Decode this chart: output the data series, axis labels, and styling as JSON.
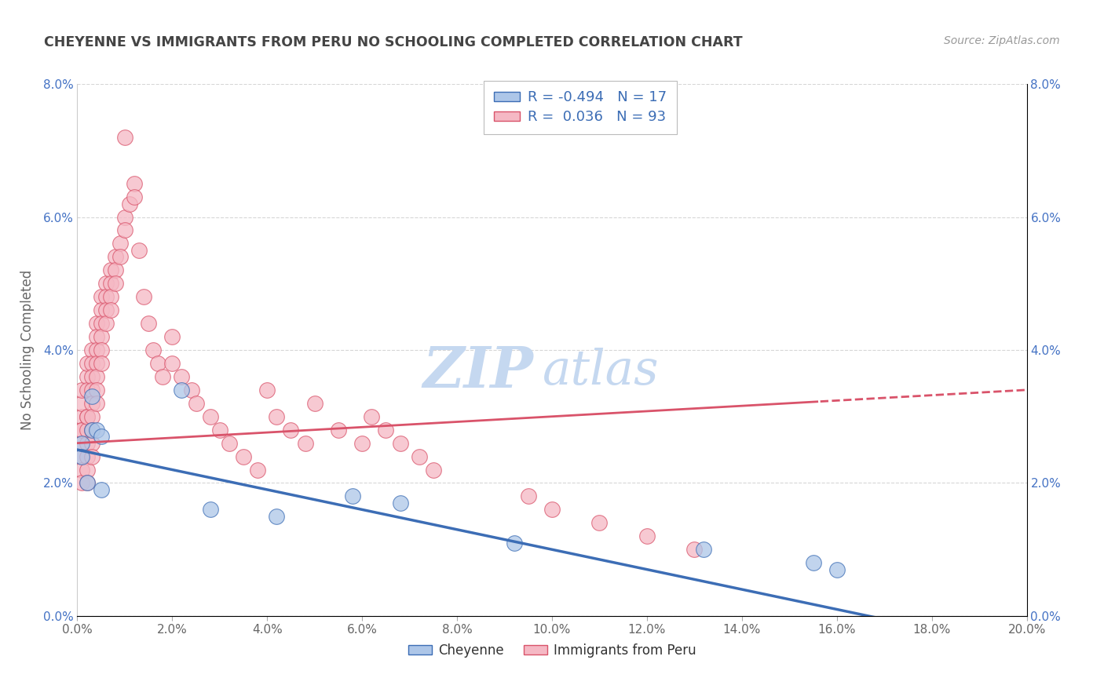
{
  "title": "CHEYENNE VS IMMIGRANTS FROM PERU NO SCHOOLING COMPLETED CORRELATION CHART",
  "source": "Source: ZipAtlas.com",
  "ylabel": "No Schooling Completed",
  "xlim": [
    0.0,
    0.2
  ],
  "ylim": [
    0.0,
    0.08
  ],
  "xlabel_ticks": [
    0.0,
    0.02,
    0.04,
    0.06,
    0.08,
    0.1,
    0.12,
    0.14,
    0.16,
    0.18,
    0.2
  ],
  "ylabel_ticks": [
    0.0,
    0.02,
    0.04,
    0.06,
    0.08
  ],
  "cheyenne_color": "#adc6e8",
  "peru_color": "#f5b8c4",
  "cheyenne_line_color": "#3c6db5",
  "peru_line_color": "#d9536a",
  "R_cheyenne": -0.494,
  "N_cheyenne": 17,
  "R_peru": 0.036,
  "N_peru": 93,
  "cheyenne_scatter_x": [
    0.001,
    0.001,
    0.002,
    0.003,
    0.003,
    0.004,
    0.005,
    0.005,
    0.022,
    0.028,
    0.042,
    0.058,
    0.068,
    0.092,
    0.132,
    0.155,
    0.16
  ],
  "cheyenne_scatter_y": [
    0.026,
    0.024,
    0.02,
    0.028,
    0.033,
    0.028,
    0.019,
    0.027,
    0.034,
    0.016,
    0.015,
    0.018,
    0.017,
    0.011,
    0.01,
    0.008,
    0.007
  ],
  "peru_scatter_x": [
    0.001,
    0.001,
    0.001,
    0.001,
    0.001,
    0.001,
    0.001,
    0.001,
    0.001,
    0.002,
    0.002,
    0.002,
    0.002,
    0.002,
    0.002,
    0.002,
    0.002,
    0.002,
    0.002,
    0.003,
    0.003,
    0.003,
    0.003,
    0.003,
    0.003,
    0.003,
    0.003,
    0.003,
    0.004,
    0.004,
    0.004,
    0.004,
    0.004,
    0.004,
    0.004,
    0.005,
    0.005,
    0.005,
    0.005,
    0.005,
    0.005,
    0.006,
    0.006,
    0.006,
    0.006,
    0.007,
    0.007,
    0.007,
    0.007,
    0.008,
    0.008,
    0.008,
    0.009,
    0.009,
    0.01,
    0.01,
    0.01,
    0.011,
    0.012,
    0.012,
    0.013,
    0.014,
    0.015,
    0.016,
    0.017,
    0.018,
    0.02,
    0.02,
    0.022,
    0.024,
    0.025,
    0.028,
    0.03,
    0.032,
    0.035,
    0.038,
    0.04,
    0.042,
    0.045,
    0.048,
    0.05,
    0.055,
    0.06,
    0.062,
    0.065,
    0.068,
    0.072,
    0.075,
    0.095,
    0.1,
    0.11,
    0.12,
    0.13
  ],
  "peru_scatter_y": [
    0.03,
    0.028,
    0.026,
    0.024,
    0.022,
    0.02,
    0.032,
    0.028,
    0.034,
    0.036,
    0.034,
    0.03,
    0.028,
    0.026,
    0.024,
    0.022,
    0.03,
    0.038,
    0.02,
    0.04,
    0.038,
    0.036,
    0.034,
    0.032,
    0.03,
    0.028,
    0.026,
    0.024,
    0.044,
    0.042,
    0.04,
    0.038,
    0.036,
    0.034,
    0.032,
    0.048,
    0.046,
    0.044,
    0.042,
    0.04,
    0.038,
    0.05,
    0.048,
    0.046,
    0.044,
    0.052,
    0.05,
    0.048,
    0.046,
    0.054,
    0.052,
    0.05,
    0.056,
    0.054,
    0.072,
    0.06,
    0.058,
    0.062,
    0.065,
    0.063,
    0.055,
    0.048,
    0.044,
    0.04,
    0.038,
    0.036,
    0.042,
    0.038,
    0.036,
    0.034,
    0.032,
    0.03,
    0.028,
    0.026,
    0.024,
    0.022,
    0.034,
    0.03,
    0.028,
    0.026,
    0.032,
    0.028,
    0.026,
    0.03,
    0.028,
    0.026,
    0.024,
    0.022,
    0.018,
    0.016,
    0.014,
    0.012,
    0.01
  ],
  "background_color": "#ffffff",
  "grid_color": "#cccccc",
  "watermark_zip": "ZIP",
  "watermark_atlas": "atlas",
  "watermark_color_zip": "#c5d8f0",
  "watermark_color_atlas": "#c5d8f0"
}
